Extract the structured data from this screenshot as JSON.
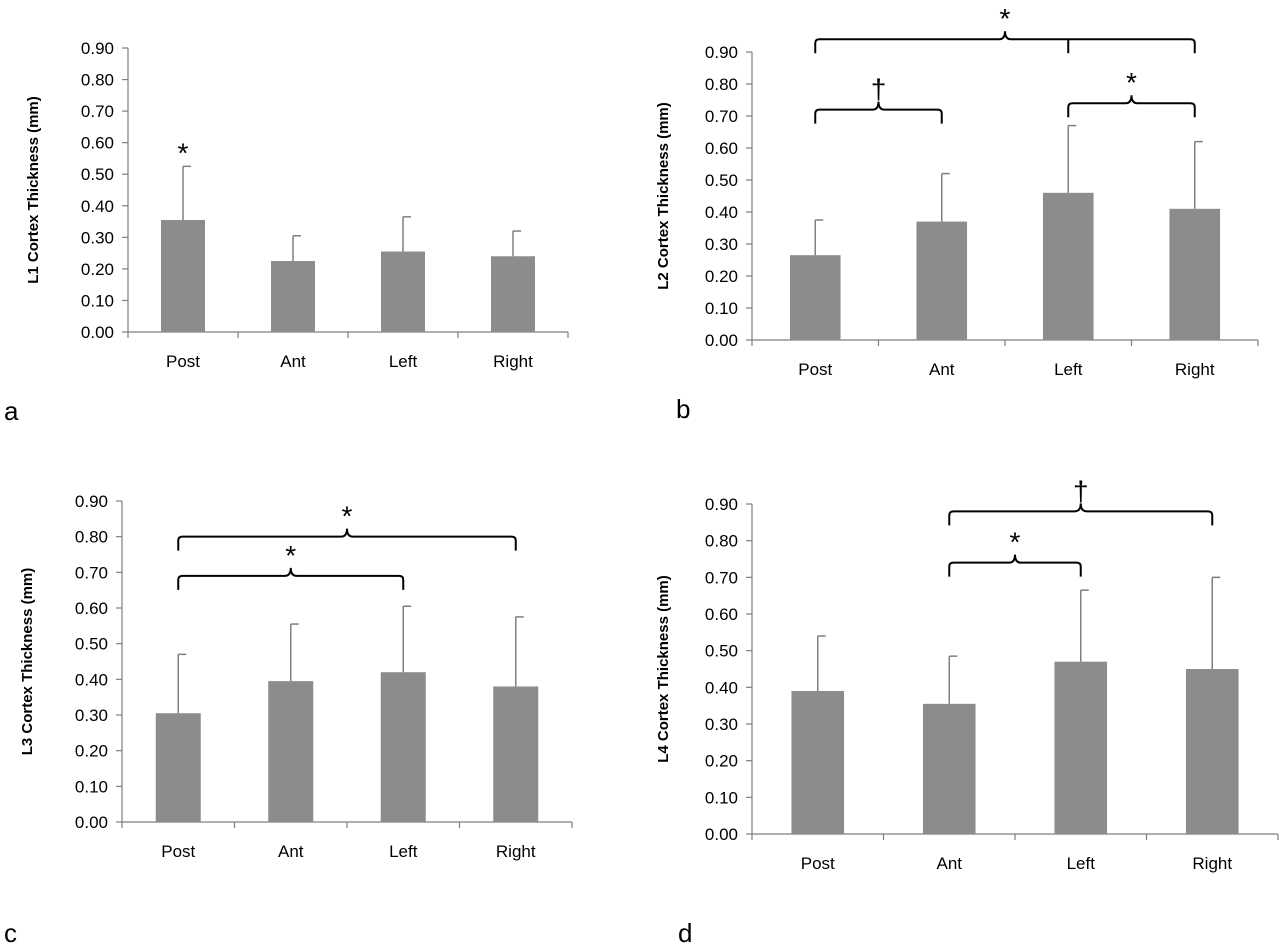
{
  "chart_data": [
    {
      "type": "bar",
      "panel_label": "a",
      "ylabel": "L1 Cortex Thickness (mm)",
      "categories": [
        "Post",
        "Ant",
        "Left",
        "Right"
      ],
      "values": [
        0.355,
        0.225,
        0.255,
        0.24
      ],
      "error": [
        0.17,
        0.08,
        0.11,
        0.08
      ],
      "ylim": [
        0,
        0.9
      ],
      "yticks": [
        "0.00",
        "0.10",
        "0.20",
        "0.30",
        "0.40",
        "0.50",
        "0.60",
        "0.70",
        "0.80",
        "0.90"
      ],
      "bar_color": "#8c8c8c",
      "annotations": [
        {
          "type": "star",
          "text": "*",
          "category": 0
        }
      ]
    },
    {
      "type": "bar",
      "panel_label": "b",
      "ylabel": "L2 Cortex Thickness (mm)",
      "categories": [
        "Post",
        "Ant",
        "Left",
        "Right"
      ],
      "values": [
        0.265,
        0.37,
        0.46,
        0.41
      ],
      "error": [
        0.11,
        0.15,
        0.21,
        0.21
      ],
      "ylim": [
        0,
        0.9
      ],
      "yticks": [
        "0.00",
        "0.10",
        "0.20",
        "0.30",
        "0.40",
        "0.50",
        "0.60",
        "0.70",
        "0.80",
        "0.90"
      ],
      "bar_color": "#8c8c8c",
      "annotations": [
        {
          "type": "bracket",
          "from": 0,
          "to": 1,
          "level": 0.72,
          "text": "†"
        },
        {
          "type": "bracket",
          "from": 2,
          "to": 3,
          "level": 0.74,
          "text": "*"
        },
        {
          "type": "bracket",
          "from": 0,
          "to": 3,
          "level": 0.94,
          "text": "*",
          "branch": 2
        }
      ]
    },
    {
      "type": "bar",
      "panel_label": "c",
      "ylabel": "L3 Cortex Thickness (mm)",
      "categories": [
        "Post",
        "Ant",
        "Left",
        "Right"
      ],
      "values": [
        0.305,
        0.395,
        0.42,
        0.38
      ],
      "error": [
        0.165,
        0.16,
        0.185,
        0.195
      ],
      "ylim": [
        0,
        0.9
      ],
      "yticks": [
        "0.00",
        "0.10",
        "0.20",
        "0.30",
        "0.40",
        "0.50",
        "0.60",
        "0.70",
        "0.80",
        "0.90"
      ],
      "bar_color": "#8c8c8c",
      "annotations": [
        {
          "type": "bracket",
          "from": 0,
          "to": 2,
          "level": 0.69,
          "text": "*"
        },
        {
          "type": "bracket",
          "from": 0,
          "to": 3,
          "level": 0.8,
          "text": "*"
        }
      ]
    },
    {
      "type": "bar",
      "panel_label": "d",
      "ylabel": "L4 Cortex Thickness (mm)",
      "categories": [
        "Post",
        "Ant",
        "Left",
        "Right"
      ],
      "values": [
        0.39,
        0.355,
        0.47,
        0.45
      ],
      "error": [
        0.15,
        0.13,
        0.195,
        0.25
      ],
      "ylim": [
        0,
        0.9
      ],
      "yticks": [
        "0.00",
        "0.10",
        "0.20",
        "0.30",
        "0.40",
        "0.50",
        "0.60",
        "0.70",
        "0.80",
        "0.90"
      ],
      "bar_color": "#8c8c8c",
      "annotations": [
        {
          "type": "bracket",
          "from": 1,
          "to": 2,
          "level": 0.74,
          "text": "*"
        },
        {
          "type": "bracket",
          "from": 1,
          "to": 3,
          "level": 0.88,
          "text": "†"
        }
      ]
    }
  ]
}
